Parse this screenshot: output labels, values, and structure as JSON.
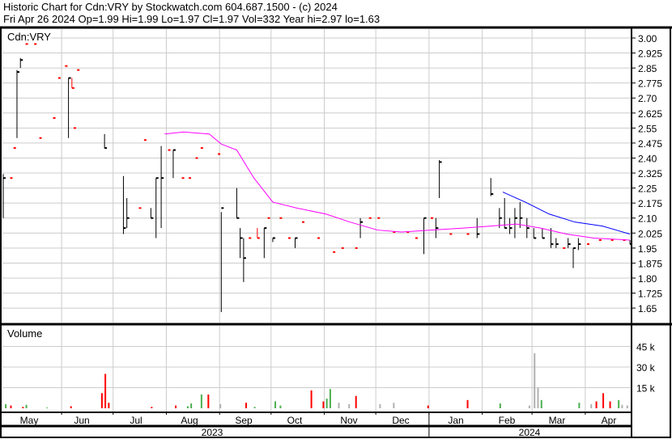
{
  "header": {
    "title": "Historic Chart for Cdn:VRY by Stockwatch.com 604.687.1500 - (c) 2024",
    "quote": "Fri Apr 26 2024  Op=1.99  Hi=1.99  Lo=1.97  Cl=1.97  Vol=332  Year hi=2.97  lo=1.63"
  },
  "chart_data": [
    {
      "type": "ohlc",
      "title": "Cdn:VRY",
      "ylim": [
        1.575,
        3.05
      ],
      "yticks": [
        "3.00",
        "2.925",
        "2.85",
        "2.775",
        "2.70",
        "2.625",
        "2.55",
        "2.475",
        "2.40",
        "2.325",
        "2.25",
        "2.175",
        "2.10",
        "2.025",
        "1.95",
        "1.875",
        "1.80",
        "1.725",
        "1.65"
      ],
      "grid": true,
      "colors": {
        "up": "#000000",
        "down": "#ff0000",
        "ma_long": "#ff00ff",
        "ma_short": "#0000ff"
      },
      "bars": [
        [
          "2023-04-27",
          2.32,
          2.1,
          2.3,
          "up"
        ],
        [
          "2023-05-01",
          2.3,
          2.3,
          2.3,
          "down"
        ],
        [
          "2023-05-03",
          2.45,
          2.45,
          2.45,
          "down"
        ],
        [
          "2023-05-05",
          2.84,
          2.5,
          2.83,
          "up"
        ],
        [
          "2023-05-07",
          2.9,
          2.85,
          2.89,
          "up"
        ],
        [
          "2023-05-10",
          2.97,
          2.97,
          2.97,
          "down"
        ],
        [
          "2023-05-15",
          2.97,
          2.97,
          2.97,
          "down"
        ],
        [
          "2023-05-18",
          2.5,
          2.5,
          2.5,
          "down"
        ],
        [
          "2023-05-26",
          2.6,
          2.6,
          2.6,
          "down"
        ],
        [
          "2023-05-29",
          2.8,
          2.8,
          2.8,
          "down"
        ],
        [
          "2023-06-02",
          2.86,
          2.86,
          2.86,
          "down"
        ],
        [
          "2023-06-04",
          2.8,
          2.5,
          2.8,
          "up"
        ],
        [
          "2023-06-06",
          2.8,
          2.75,
          2.75,
          "down"
        ],
        [
          "2023-06-07",
          2.55,
          2.55,
          2.55,
          "down"
        ],
        [
          "2023-06-09",
          2.84,
          2.84,
          2.84,
          "down"
        ],
        [
          "2023-06-25",
          2.52,
          2.45,
          2.45,
          "up"
        ],
        [
          "2023-07-06",
          2.31,
          2.02,
          2.05,
          "up"
        ],
        [
          "2023-07-08",
          2.2,
          2.05,
          2.1,
          "up"
        ],
        [
          "2023-07-15",
          2.15,
          2.15,
          2.15,
          "down"
        ],
        [
          "2023-07-18",
          2.49,
          2.49,
          2.49,
          "down"
        ],
        [
          "2023-07-22",
          2.15,
          2.1,
          2.1,
          "up"
        ],
        [
          "2023-07-25",
          2.3,
          2.0,
          2.3,
          "up"
        ],
        [
          "2023-07-28",
          2.46,
          2.05,
          2.3,
          "up"
        ],
        [
          "2023-08-01",
          2.44,
          2.44,
          2.44,
          "down"
        ],
        [
          "2023-08-04",
          2.44,
          2.3,
          2.44,
          "up"
        ],
        [
          "2023-08-09",
          2.3,
          2.3,
          2.3,
          "down"
        ],
        [
          "2023-08-13",
          2.3,
          2.3,
          2.3,
          "down"
        ],
        [
          "2023-08-17",
          2.4,
          2.4,
          2.4,
          "down"
        ],
        [
          "2023-08-20",
          2.45,
          2.45,
          2.45,
          "down"
        ],
        [
          "2023-08-30",
          2.42,
          2.42,
          2.42,
          "down"
        ],
        [
          "2023-09-01",
          2.13,
          1.63,
          2.15,
          "up"
        ],
        [
          "2023-09-10",
          2.25,
          2.1,
          2.1,
          "up"
        ],
        [
          "2023-09-12",
          2.05,
          1.9,
          2.0,
          "up"
        ],
        [
          "2023-09-14",
          2.0,
          1.78,
          1.9,
          "up"
        ],
        [
          "2023-09-17",
          2.0,
          2.0,
          2.0,
          "down"
        ],
        [
          "2023-09-22",
          2.05,
          2.0,
          2.0,
          "down"
        ],
        [
          "2023-09-26",
          2.05,
          1.9,
          2.05,
          "up"
        ],
        [
          "2023-09-28",
          2.1,
          2.1,
          2.1,
          "down"
        ],
        [
          "2023-10-01",
          2.0,
          1.98,
          2.0,
          "up"
        ],
        [
          "2023-10-05",
          2.1,
          2.1,
          2.1,
          "down"
        ],
        [
          "2023-10-10",
          2.0,
          2.0,
          2.0,
          "down"
        ],
        [
          "2023-10-14",
          2.0,
          1.95,
          2.0,
          "up"
        ],
        [
          "2023-10-18",
          2.08,
          2.08,
          2.08,
          "down"
        ],
        [
          "2023-10-27",
          2.0,
          2.0,
          2.0,
          "down"
        ],
        [
          "2023-11-05",
          1.93,
          1.93,
          1.93,
          "down"
        ],
        [
          "2023-11-10",
          1.95,
          1.95,
          1.95,
          "down"
        ],
        [
          "2023-11-18",
          1.95,
          1.95,
          1.95,
          "down"
        ],
        [
          "2023-11-21",
          2.1,
          2.0,
          2.08,
          "up"
        ],
        [
          "2023-11-26",
          2.1,
          2.1,
          2.1,
          "down"
        ],
        [
          "2023-12-01",
          2.1,
          2.1,
          2.1,
          "down"
        ],
        [
          "2023-12-10",
          2.03,
          2.03,
          2.03,
          "down"
        ],
        [
          "2023-12-18",
          2.03,
          2.03,
          2.03,
          "down"
        ],
        [
          "2023-12-23",
          2.0,
          2.0,
          2.0,
          "down"
        ],
        [
          "2023-12-28",
          2.1,
          1.92,
          2.1,
          "up"
        ],
        [
          "2024-01-01",
          2.1,
          2.1,
          2.1,
          "down"
        ],
        [
          "2024-01-04",
          2.1,
          2.0,
          2.05,
          "up"
        ],
        [
          "2024-01-06",
          2.39,
          2.2,
          2.38,
          "up"
        ],
        [
          "2024-01-12",
          2.02,
          2.02,
          2.02,
          "down"
        ],
        [
          "2024-01-22",
          2.02,
          2.02,
          2.02,
          "down"
        ],
        [
          "2024-01-28",
          2.1,
          2.0,
          2.02,
          "up"
        ],
        [
          "2024-02-05",
          2.3,
          2.21,
          2.22,
          "up"
        ],
        [
          "2024-02-10",
          2.15,
          2.05,
          2.1,
          "up"
        ],
        [
          "2024-02-13",
          2.2,
          2.05,
          2.05,
          "up"
        ],
        [
          "2024-02-16",
          2.1,
          2.02,
          2.05,
          "up"
        ],
        [
          "2024-02-19",
          2.15,
          2.0,
          2.1,
          "up"
        ],
        [
          "2024-02-22",
          2.18,
          2.05,
          2.1,
          "up"
        ],
        [
          "2024-02-26",
          2.1,
          2.0,
          2.05,
          "up"
        ],
        [
          "2024-03-01",
          2.05,
          2.0,
          2.0,
          "up"
        ],
        [
          "2024-03-06",
          2.05,
          2.0,
          2.0,
          "up"
        ],
        [
          "2024-03-11",
          2.05,
          1.95,
          1.97,
          "up"
        ],
        [
          "2024-03-14",
          2.0,
          1.95,
          1.97,
          "up"
        ],
        [
          "2024-03-18",
          1.95,
          1.95,
          1.95,
          "down"
        ],
        [
          "2024-03-21",
          2.0,
          1.95,
          1.97,
          "up"
        ],
        [
          "2024-03-24",
          1.95,
          1.85,
          1.95,
          "up"
        ],
        [
          "2024-03-27",
          2.0,
          1.94,
          1.97,
          "up"
        ],
        [
          "2024-04-01",
          1.97,
          1.97,
          1.97,
          "down"
        ],
        [
          "2024-04-08",
          1.99,
          1.99,
          1.99,
          "down"
        ],
        [
          "2024-04-15",
          1.99,
          1.99,
          1.99,
          "down"
        ],
        [
          "2024-04-22",
          1.99,
          1.99,
          1.99,
          "down"
        ],
        [
          "2024-04-26",
          1.99,
          1.97,
          1.97,
          "up"
        ]
      ],
      "ma_long": [
        [
          "2023-07-30",
          2.52
        ],
        [
          "2023-08-10",
          2.53
        ],
        [
          "2023-08-25",
          2.52
        ],
        [
          "2023-09-01",
          2.47
        ],
        [
          "2023-09-10",
          2.44
        ],
        [
          "2023-09-20",
          2.3
        ],
        [
          "2023-10-01",
          2.18
        ],
        [
          "2023-10-15",
          2.15
        ],
        [
          "2023-11-01",
          2.12
        ],
        [
          "2023-11-15",
          2.08
        ],
        [
          "2023-12-01",
          2.04
        ],
        [
          "2023-12-15",
          2.03
        ],
        [
          "2024-01-01",
          2.04
        ],
        [
          "2024-01-20",
          2.05
        ],
        [
          "2024-02-05",
          2.06
        ],
        [
          "2024-02-20",
          2.07
        ],
        [
          "2024-03-05",
          2.05
        ],
        [
          "2024-03-20",
          2.02
        ],
        [
          "2024-04-05",
          2.0
        ],
        [
          "2024-04-26",
          1.99
        ]
      ],
      "ma_short": [
        [
          "2024-02-12",
          2.23
        ],
        [
          "2024-02-25",
          2.18
        ],
        [
          "2024-03-10",
          2.12
        ],
        [
          "2024-03-25",
          2.08
        ],
        [
          "2024-04-10",
          2.06
        ],
        [
          "2024-04-26",
          2.02
        ]
      ]
    },
    {
      "type": "bar",
      "title": "Volume",
      "yticks": [
        "45 k",
        "30 k",
        "15 k"
      ],
      "ylim": [
        0,
        55000
      ],
      "colors": {
        "up": "#4caf50",
        "down": "#ff0000",
        "flat": "#b0b0b0"
      },
      "bars": [
        [
          "2023-04-28",
          3000,
          "up"
        ],
        [
          "2023-05-01",
          2000,
          "down"
        ],
        [
          "2023-05-08",
          1000,
          "down"
        ],
        [
          "2023-05-10",
          2500,
          "up"
        ],
        [
          "2023-05-22",
          500,
          "up"
        ],
        [
          "2023-06-05",
          1500,
          "down"
        ],
        [
          "2023-06-23",
          11000,
          "down"
        ],
        [
          "2023-06-25",
          25000,
          "down"
        ],
        [
          "2023-06-27",
          4000,
          "down"
        ],
        [
          "2023-07-22",
          1000,
          "down"
        ],
        [
          "2023-08-05",
          2000,
          "down"
        ],
        [
          "2023-08-12",
          1500,
          "up"
        ],
        [
          "2023-08-14",
          3500,
          "up"
        ],
        [
          "2023-08-20",
          10000,
          "up"
        ],
        [
          "2023-08-24",
          10000,
          "down"
        ],
        [
          "2023-08-31",
          3000,
          "flat"
        ],
        [
          "2023-09-15",
          4000,
          "down"
        ],
        [
          "2023-09-20",
          1000,
          "up"
        ],
        [
          "2023-10-02",
          5000,
          "up"
        ],
        [
          "2023-10-05",
          2000,
          "up"
        ],
        [
          "2023-10-23",
          13000,
          "down"
        ],
        [
          "2023-10-30",
          5000,
          "down"
        ],
        [
          "2023-11-01",
          7000,
          "up"
        ],
        [
          "2023-11-03",
          14000,
          "up"
        ],
        [
          "2023-11-08",
          4000,
          "flat"
        ],
        [
          "2023-11-14",
          3000,
          "flat"
        ],
        [
          "2023-11-18",
          9000,
          "down"
        ],
        [
          "2023-12-02",
          3000,
          "flat"
        ],
        [
          "2023-12-10",
          4000,
          "flat"
        ],
        [
          "2023-12-30",
          2000,
          "down"
        ],
        [
          "2024-01-22",
          6000,
          "down"
        ],
        [
          "2024-02-10",
          3500,
          "up"
        ],
        [
          "2024-02-27",
          2000,
          "flat"
        ],
        [
          "2024-03-01",
          40000,
          "flat"
        ],
        [
          "2024-03-03",
          15000,
          "flat"
        ],
        [
          "2024-03-05",
          6000,
          "up"
        ],
        [
          "2024-03-27",
          4000,
          "up"
        ],
        [
          "2024-04-03",
          3000,
          "flat"
        ],
        [
          "2024-04-06",
          5000,
          "down"
        ],
        [
          "2024-04-10",
          11000,
          "down"
        ],
        [
          "2024-04-14",
          5000,
          "down"
        ],
        [
          "2024-04-19",
          6000,
          "up"
        ],
        [
          "2024-04-21",
          2500,
          "flat"
        ],
        [
          "2024-04-24",
          2000,
          "flat"
        ]
      ],
      "note_x": "dates"
    },
    {
      "type": "axis",
      "months": [
        "May",
        "Jun",
        "Jul",
        "Aug",
        "Sep",
        "Oct",
        "Nov",
        "Dec",
        "Jan",
        "Feb",
        "Mar",
        "Apr"
      ],
      "years": [
        "2023",
        "2024"
      ]
    }
  ]
}
